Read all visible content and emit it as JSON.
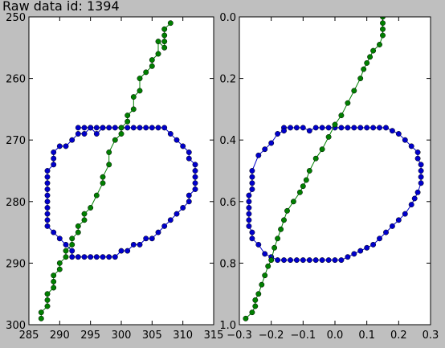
{
  "figure": {
    "title": "Raw data id: 1394"
  },
  "chart_data": [
    {
      "type": "line",
      "xlim": [
        285,
        315
      ],
      "ylim": [
        300,
        250
      ],
      "y_inverted": true,
      "grid": false,
      "xticks": [
        "285",
        "290",
        "295",
        "300",
        "305",
        "310",
        "315"
      ],
      "yticks": [
        "250",
        "260",
        "270",
        "280",
        "290",
        "300"
      ],
      "series": [
        {
          "color": "#0000cc",
          "marker": "circle",
          "x": [
            293,
            294,
            295,
            296,
            297,
            298,
            299,
            300,
            301,
            302,
            303,
            304,
            305,
            306,
            307,
            308,
            309,
            310,
            311,
            311,
            312,
            312,
            312,
            312,
            312,
            311,
            311,
            310,
            309,
            308,
            307,
            306,
            305,
            304,
            303,
            302,
            301,
            300,
            299,
            298,
            297,
            296,
            295,
            294,
            293,
            292,
            292,
            291,
            290,
            289,
            288,
            288,
            288,
            288,
            288,
            288,
            288,
            288,
            288,
            288,
            289,
            289,
            289,
            290,
            291,
            292,
            293,
            294,
            295,
            296,
            297
          ],
          "y": [
            268,
            268,
            268,
            268,
            268,
            268,
            268,
            268,
            268,
            268,
            268,
            268,
            268,
            268,
            268,
            269,
            270,
            271,
            272,
            273,
            274,
            275,
            276,
            277,
            278,
            279,
            280,
            281,
            282,
            283,
            284,
            285,
            286,
            286,
            287,
            287,
            288,
            288,
            289,
            289,
            289,
            289,
            289,
            289,
            289,
            289,
            288,
            287,
            286,
            285,
            284,
            283,
            282,
            281,
            280,
            279,
            278,
            277,
            276,
            275,
            274,
            273,
            272,
            271,
            271,
            270,
            269,
            269,
            268,
            269,
            268
          ]
        },
        {
          "color": "#007f00",
          "marker": "circle",
          "x": [
            287,
            287,
            288,
            288,
            288,
            289,
            289,
            289,
            290,
            290,
            291,
            291,
            292,
            292,
            293,
            293,
            294,
            294,
            295,
            296,
            297,
            297,
            298,
            298,
            299,
            300,
            300,
            301,
            301,
            302,
            302,
            303,
            303,
            304,
            305,
            305,
            306,
            306,
            307,
            307,
            307,
            307,
            308
          ],
          "y": [
            299,
            298,
            297,
            296,
            295,
            294,
            293,
            292,
            291,
            290,
            289,
            288,
            287,
            286,
            285,
            284,
            283,
            282,
            281,
            279,
            277,
            276,
            274,
            272,
            270,
            269,
            268,
            267,
            266,
            265,
            263,
            262,
            260,
            259,
            258,
            257,
            256,
            254,
            255,
            254,
            253,
            252,
            251
          ]
        }
      ]
    },
    {
      "type": "line",
      "xlim": [
        -0.3,
        0.3
      ],
      "ylim": [
        1.0,
        0.0
      ],
      "y_inverted": true,
      "grid": false,
      "xticks": [
        "−0.3",
        "−0.2",
        "−0.1",
        "0.0",
        "0.1",
        "0.2",
        "0.3"
      ],
      "yticks": [
        "0.0",
        "0.2",
        "0.4",
        "0.6",
        "0.8",
        "1.0"
      ],
      "series": [
        {
          "color": "#0000cc",
          "marker": "circle",
          "x": [
            -0.16,
            -0.14,
            -0.12,
            -0.1,
            -0.08,
            -0.06,
            -0.04,
            -0.02,
            0.0,
            0.02,
            0.04,
            0.06,
            0.08,
            0.1,
            0.12,
            0.14,
            0.16,
            0.18,
            0.2,
            0.22,
            0.24,
            0.26,
            0.26,
            0.27,
            0.27,
            0.27,
            0.27,
            0.26,
            0.25,
            0.24,
            0.22,
            0.2,
            0.18,
            0.16,
            0.14,
            0.12,
            0.1,
            0.08,
            0.06,
            0.04,
            0.02,
            0.0,
            -0.02,
            -0.04,
            -0.06,
            -0.08,
            -0.1,
            -0.12,
            -0.14,
            -0.16,
            -0.18,
            -0.2,
            -0.22,
            -0.24,
            -0.26,
            -0.26,
            -0.27,
            -0.27,
            -0.27,
            -0.27,
            -0.27,
            -0.27,
            -0.26,
            -0.26,
            -0.26,
            -0.26,
            -0.24,
            -0.22,
            -0.2,
            -0.18,
            -0.16
          ],
          "y": [
            0.36,
            0.36,
            0.36,
            0.36,
            0.37,
            0.36,
            0.36,
            0.36,
            0.36,
            0.36,
            0.36,
            0.36,
            0.36,
            0.36,
            0.36,
            0.36,
            0.36,
            0.37,
            0.38,
            0.4,
            0.42,
            0.44,
            0.46,
            0.48,
            0.5,
            0.52,
            0.54,
            0.57,
            0.59,
            0.61,
            0.64,
            0.66,
            0.68,
            0.7,
            0.72,
            0.74,
            0.75,
            0.76,
            0.77,
            0.78,
            0.79,
            0.79,
            0.79,
            0.79,
            0.79,
            0.79,
            0.79,
            0.79,
            0.79,
            0.79,
            0.79,
            0.78,
            0.77,
            0.74,
            0.72,
            0.7,
            0.68,
            0.66,
            0.64,
            0.62,
            0.6,
            0.58,
            0.56,
            0.54,
            0.52,
            0.5,
            0.45,
            0.43,
            0.41,
            0.38,
            0.37
          ]
        },
        {
          "color": "#007f00",
          "marker": "circle",
          "x": [
            -0.28,
            -0.26,
            -0.25,
            -0.25,
            -0.24,
            -0.23,
            -0.22,
            -0.21,
            -0.2,
            -0.19,
            -0.18,
            -0.17,
            -0.16,
            -0.15,
            -0.13,
            -0.11,
            -0.1,
            -0.09,
            -0.08,
            -0.06,
            -0.04,
            -0.02,
            0.0,
            0.02,
            0.04,
            0.06,
            0.08,
            0.09,
            0.1,
            0.11,
            0.12,
            0.14,
            0.15,
            0.15,
            0.15,
            0.15,
            0.15,
            0.17
          ],
          "y": [
            0.98,
            0.96,
            0.94,
            0.92,
            0.9,
            0.87,
            0.84,
            0.81,
            0.79,
            0.75,
            0.72,
            0.69,
            0.66,
            0.63,
            0.6,
            0.57,
            0.55,
            0.53,
            0.5,
            0.46,
            0.43,
            0.39,
            0.35,
            0.32,
            0.28,
            0.24,
            0.2,
            0.17,
            0.15,
            0.13,
            0.11,
            0.09,
            0.06,
            0.04,
            0.02,
            0.0,
            -0.02,
            -0.02
          ]
        }
      ]
    }
  ]
}
